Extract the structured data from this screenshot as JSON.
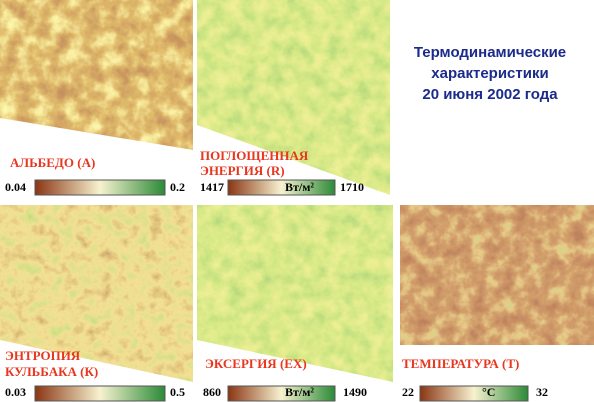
{
  "title": [
    "Термодинамические",
    "характеристики",
    "20 июня 2002 года"
  ],
  "panels": [
    {
      "label": [
        "АЛЬБЕДО (А)"
      ],
      "min": 0.04,
      "max": 0.2
    },
    {
      "label": [
        "ПОГЛОЩЕННАЯ",
        "ЭНЕРГИЯ (R)"
      ],
      "min": 1417,
      "max": 1710,
      "unit": "Вт/м²"
    },
    {
      "label": [
        "ЭНТРОПИЯ",
        "КУЛЬБАКА (К)"
      ],
      "min": 0.03,
      "max": 0.5
    },
    {
      "label": [
        "ЭКСЕРГИЯ (ЕХ)"
      ],
      "min": 860,
      "max": 1490,
      "unit": "Вт/м²"
    },
    {
      "label": [
        "ТЕМПЕРАТУРА (Т)"
      ],
      "min": 22,
      "max": 32,
      "unit": "°C"
    }
  ]
}
